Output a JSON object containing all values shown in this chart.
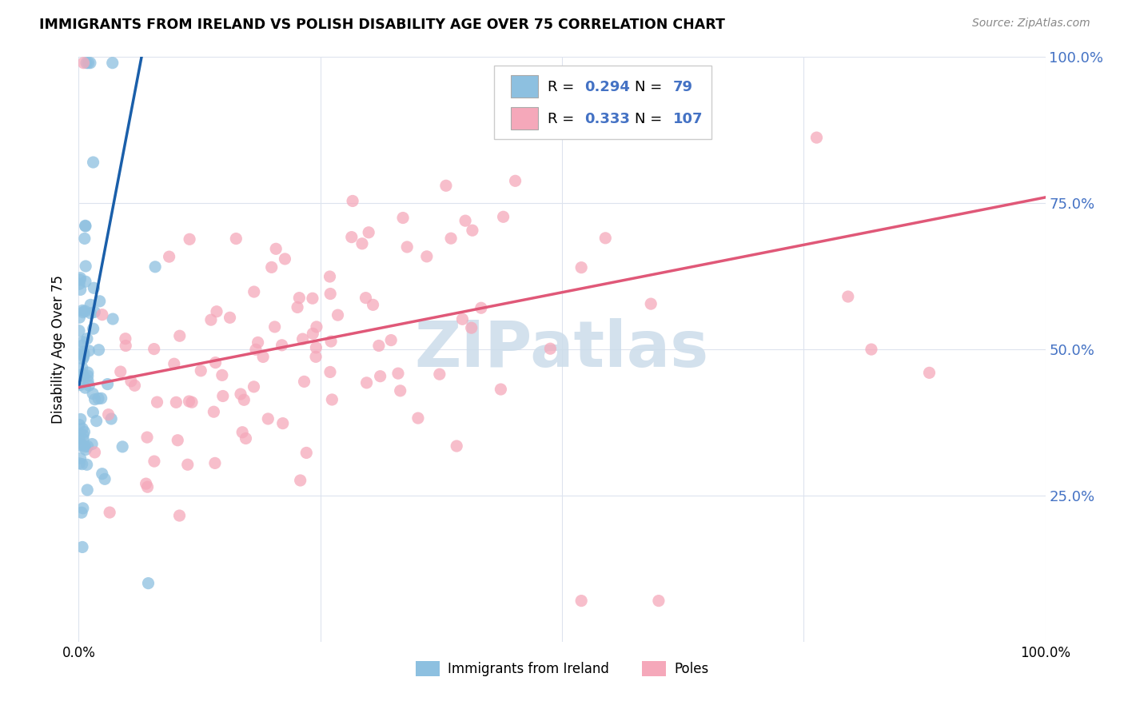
{
  "title": "IMMIGRANTS FROM IRELAND VS POLISH DISABILITY AGE OVER 75 CORRELATION CHART",
  "source": "Source: ZipAtlas.com",
  "ylabel": "Disability Age Over 75",
  "legend_label1": "Immigrants from Ireland",
  "legend_label2": "Poles",
  "R1": 0.294,
  "N1": 79,
  "R2": 0.333,
  "N2": 107,
  "color1": "#8dc0e0",
  "color2": "#f5a8ba",
  "trendline1_color": "#1a5faa",
  "trendline2_color": "#e05878",
  "dashed_line_color": "#b8c4d0",
  "watermark_color": "#ccdcea",
  "ytick_color": "#4472c4",
  "background_color": "#ffffff",
  "xlim": [
    0.0,
    1.0
  ],
  "ylim": [
    0.0,
    1.0
  ],
  "yticks": [
    0.25,
    0.5,
    0.75,
    1.0
  ],
  "ytick_labels": [
    "25.0%",
    "50.0%",
    "75.0%",
    "100.0%"
  ],
  "ireland_seed": 77,
  "poles_seed": 42,
  "trendline1_x0": 0.0,
  "trendline1_y0": 0.435,
  "trendline1_x1": 0.065,
  "trendline1_y1": 1.0,
  "trendline2_x0": 0.0,
  "trendline2_y0": 0.435,
  "trendline2_x1": 1.0,
  "trendline2_y1": 0.76
}
